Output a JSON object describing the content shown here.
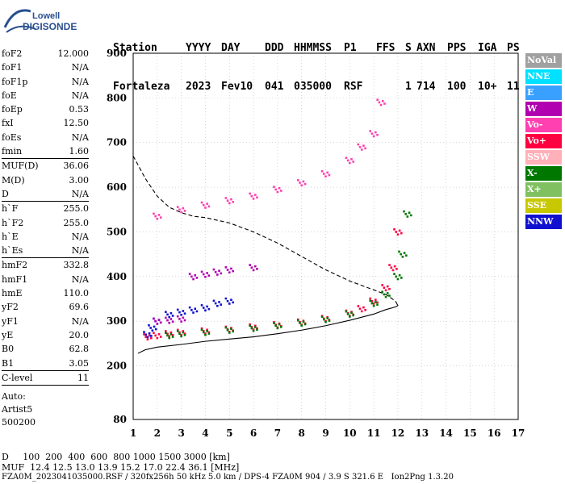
{
  "logo": {
    "line1": "Lowell",
    "line2": "DIGISONDE"
  },
  "header": {
    "row1": [
      "Station",
      "YYYY",
      "DAY",
      "DDD",
      "HHMMSS",
      "P1",
      "FFS",
      "S",
      "AXN",
      "PPS",
      "IGA",
      "PS"
    ],
    "row2": [
      "Fortaleza",
      "2023",
      "Fev10",
      "041",
      "035000",
      "RSF",
      "1",
      "714",
      "100",
      "10+",
      "11"
    ]
  },
  "params": {
    "group1": [
      {
        "label": "foF2",
        "value": "12.000"
      },
      {
        "label": "foF1",
        "value": "N/A"
      },
      {
        "label": "foF1p",
        "value": "N/A"
      },
      {
        "label": "foE",
        "value": "N/A"
      },
      {
        "label": "foEp",
        "value": "0.53"
      },
      {
        "label": "fxI",
        "value": "12.50"
      },
      {
        "label": "foEs",
        "value": "N/A"
      },
      {
        "label": "fmin",
        "value": "1.60"
      }
    ],
    "group2": [
      {
        "label": "MUF(D)",
        "value": "36.06"
      },
      {
        "label": "M(D)",
        "value": "3.00"
      },
      {
        "label": "D",
        "value": "N/A"
      }
    ],
    "group3": [
      {
        "label": "h`F",
        "value": "255.0"
      },
      {
        "label": "h`F2",
        "value": "255.0"
      },
      {
        "label": "h`E",
        "value": "N/A"
      },
      {
        "label": "h`Es",
        "value": "N/A"
      }
    ],
    "group4": [
      {
        "label": "hmF2",
        "value": "332.8"
      },
      {
        "label": "hmF1",
        "value": "N/A"
      },
      {
        "label": "hmE",
        "value": "110.0"
      },
      {
        "label": "yF2",
        "value": "69.6"
      },
      {
        "label": "yF1",
        "value": "N/A"
      },
      {
        "label": "yE",
        "value": "20.0"
      },
      {
        "label": "B0",
        "value": "62.8"
      },
      {
        "label": "B1",
        "value": "3.05"
      }
    ],
    "group5": [
      {
        "label": "C-level",
        "value": "11"
      }
    ],
    "auto": [
      "Auto:",
      "Artist5",
      "500200"
    ]
  },
  "footer": {
    "line1": "D     100  200  400  600  800 1000 1500 3000 [km]",
    "line2": "MUF  12.4 12.5 13.0 13.9 15.2 17.0 22.4 36.1 [MHz]",
    "line3": "FZA0M_2023041035000.RSF / 320fx256h 50 kHz 5.0 km / DPS-4 FZA0M 904 / 3.9 S 321.6 E   Ion2Png 1.3.20"
  },
  "legend": [
    {
      "label": "NoVal",
      "color": "#a0a0a0"
    },
    {
      "label": "NNE",
      "color": "#00e0ff"
    },
    {
      "label": "E",
      "color": "#3aa0ff"
    },
    {
      "label": "W",
      "color": "#b000b0"
    },
    {
      "label": "Vo-",
      "color": "#ff40b0"
    },
    {
      "label": "Vo+",
      "color": "#ff0040"
    },
    {
      "label": "SSW",
      "color": "#ffb0b8"
    },
    {
      "label": "X-",
      "color": "#007800"
    },
    {
      "label": "X+",
      "color": "#80c060"
    },
    {
      "label": "SSE",
      "color": "#c8c800"
    },
    {
      "label": "NNW",
      "color": "#1010d0"
    }
  ],
  "chart_data": {
    "type": "scatter",
    "xlim": [
      1,
      17
    ],
    "ylim": [
      80,
      900
    ],
    "x_ticks": [
      1,
      2,
      3,
      4,
      5,
      6,
      7,
      8,
      9,
      10,
      11,
      12,
      13,
      14,
      15,
      16,
      17
    ],
    "y_ticks": [
      80,
      200,
      300,
      400,
      500,
      600,
      700,
      800,
      900
    ],
    "grid": true,
    "legend_position": "right",
    "series": [
      {
        "name": "Vo+",
        "color": "#ff0040",
        "x": [
          1.6,
          2.0,
          2.5,
          3.0,
          4.0,
          5.0,
          6.0,
          7.0,
          8.0,
          9.0,
          10.0,
          10.5,
          11.0,
          11.5,
          11.8,
          12.0
        ],
        "y": [
          265,
          268,
          272,
          275,
          278,
          282,
          287,
          292,
          298,
          306,
          318,
          328,
          345,
          375,
          420,
          500
        ]
      },
      {
        "name": "X-",
        "color": "#007800",
        "x": [
          2.5,
          3.0,
          4.0,
          5.0,
          6.0,
          7.0,
          8.0,
          9.0,
          10.0,
          11.0,
          11.5,
          12.0,
          12.2,
          12.4
        ],
        "y": [
          268,
          272,
          275,
          280,
          284,
          290,
          296,
          304,
          316,
          340,
          360,
          400,
          450,
          540
        ]
      },
      {
        "name": "Vo-",
        "color": "#ff40b0",
        "x": [
          2.0,
          3.0,
          4.0,
          5.0,
          6.0,
          7.0,
          8.0,
          9.0,
          10.0,
          10.5,
          11.0,
          11.3
        ],
        "y": [
          535,
          550,
          560,
          570,
          580,
          595,
          610,
          630,
          660,
          690,
          720,
          790
        ]
      },
      {
        "name": "NNW",
        "color": "#1010d0",
        "x": [
          1.6,
          1.8,
          2.0,
          2.5,
          3.0,
          3.5,
          4.0,
          4.5,
          5.0
        ],
        "y": [
          270,
          285,
          300,
          315,
          320,
          325,
          330,
          340,
          345
        ]
      },
      {
        "name": "W",
        "color": "#b000b0",
        "x": [
          2.0,
          2.5,
          3.0,
          3.5,
          4.0,
          4.5,
          5.0,
          6.0
        ],
        "y": [
          300,
          302,
          305,
          400,
          405,
          410,
          415,
          420
        ]
      }
    ],
    "curves": [
      {
        "name": "profile-solid",
        "style": "solid",
        "x": [
          1.2,
          1.5,
          2.0,
          3.0,
          4.0,
          5.0,
          6.0,
          7.0,
          8.0,
          9.0,
          10.0,
          11.0,
          11.5,
          11.9,
          12.0,
          11.9
        ],
        "y": [
          228,
          236,
          242,
          248,
          255,
          260,
          265,
          272,
          280,
          290,
          302,
          316,
          326,
          332,
          335,
          345
        ]
      },
      {
        "name": "profile-dashed",
        "style": "dashed",
        "x": [
          1.0,
          1.5,
          2.0,
          2.5,
          3.0,
          3.5,
          4.0,
          5.0,
          6.0,
          7.0,
          8.0,
          9.0,
          10.0,
          11.0,
          11.5,
          11.9
        ],
        "y": [
          670,
          620,
          580,
          555,
          543,
          535,
          532,
          520,
          500,
          475,
          445,
          415,
          390,
          370,
          360,
          345
        ]
      }
    ]
  }
}
